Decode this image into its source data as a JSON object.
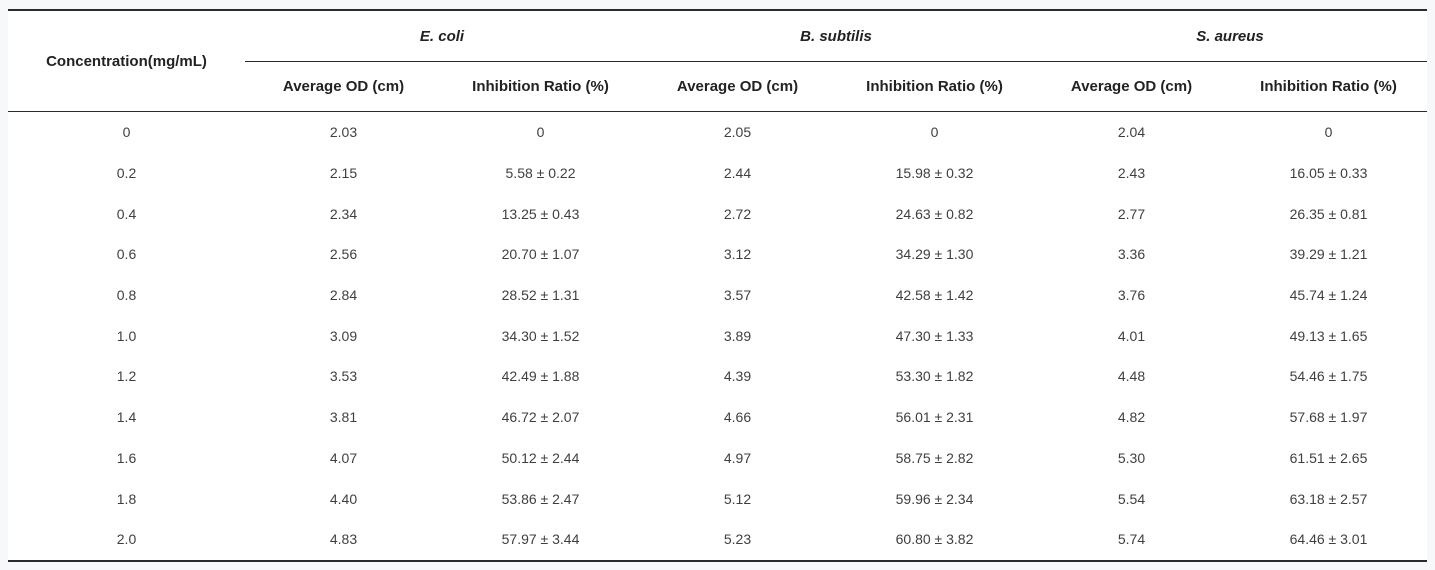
{
  "table": {
    "concentration_header": "Concentration(mg/mL)",
    "avg_od_label": "Average OD (cm)",
    "inhibition_label": "Inhibition Ratio (%)",
    "groups": [
      {
        "name": "E. coli"
      },
      {
        "name": "B. subtilis"
      },
      {
        "name": "S. aureus"
      }
    ],
    "rows": [
      {
        "concentration": "0",
        "cells": [
          "2.03",
          "0",
          "2.05",
          "0",
          "2.04",
          "0"
        ]
      },
      {
        "concentration": "0.2",
        "cells": [
          "2.15",
          "5.58 ± 0.22",
          "2.44",
          "15.98 ± 0.32",
          "2.43",
          "16.05 ± 0.33"
        ]
      },
      {
        "concentration": "0.4",
        "cells": [
          "2.34",
          "13.25 ± 0.43",
          "2.72",
          "24.63 ± 0.82",
          "2.77",
          "26.35 ± 0.81"
        ]
      },
      {
        "concentration": "0.6",
        "cells": [
          "2.56",
          "20.70 ± 1.07",
          "3.12",
          "34.29 ± 1.30",
          "3.36",
          "39.29 ± 1.21"
        ]
      },
      {
        "concentration": "0.8",
        "cells": [
          "2.84",
          "28.52 ± 1.31",
          "3.57",
          "42.58 ± 1.42",
          "3.76",
          "45.74 ± 1.24"
        ]
      },
      {
        "concentration": "1.0",
        "cells": [
          "3.09",
          "34.30 ± 1.52",
          "3.89",
          "47.30 ± 1.33",
          "4.01",
          "49.13 ± 1.65"
        ]
      },
      {
        "concentration": "1.2",
        "cells": [
          "3.53",
          "42.49 ± 1.88",
          "4.39",
          "53.30 ± 1.82",
          "4.48",
          "54.46 ± 1.75"
        ]
      },
      {
        "concentration": "1.4",
        "cells": [
          "3.81",
          "46.72 ± 2.07",
          "4.66",
          "56.01 ± 2.31",
          "4.82",
          "57.68 ± 1.97"
        ]
      },
      {
        "concentration": "1.6",
        "cells": [
          "4.07",
          "50.12 ± 2.44",
          "4.97",
          "58.75 ± 2.82",
          "5.30",
          "61.51 ± 2.65"
        ]
      },
      {
        "concentration": "1.8",
        "cells": [
          "4.40",
          "53.86 ± 2.47",
          "5.12",
          "59.96 ± 2.34",
          "5.54",
          "63.18 ± 2.57"
        ]
      },
      {
        "concentration": "2.0",
        "cells": [
          "4.83",
          "57.97 ± 3.44",
          "5.23",
          "60.80 ± 3.82",
          "5.74",
          "64.46 ± 3.01"
        ]
      }
    ],
    "colors": {
      "border": "#2b2b2b",
      "header_text": "#222222",
      "data_text": "#3f3f3f",
      "table_bg": "#ffffff",
      "page_bg": "#f7f8f9"
    }
  }
}
